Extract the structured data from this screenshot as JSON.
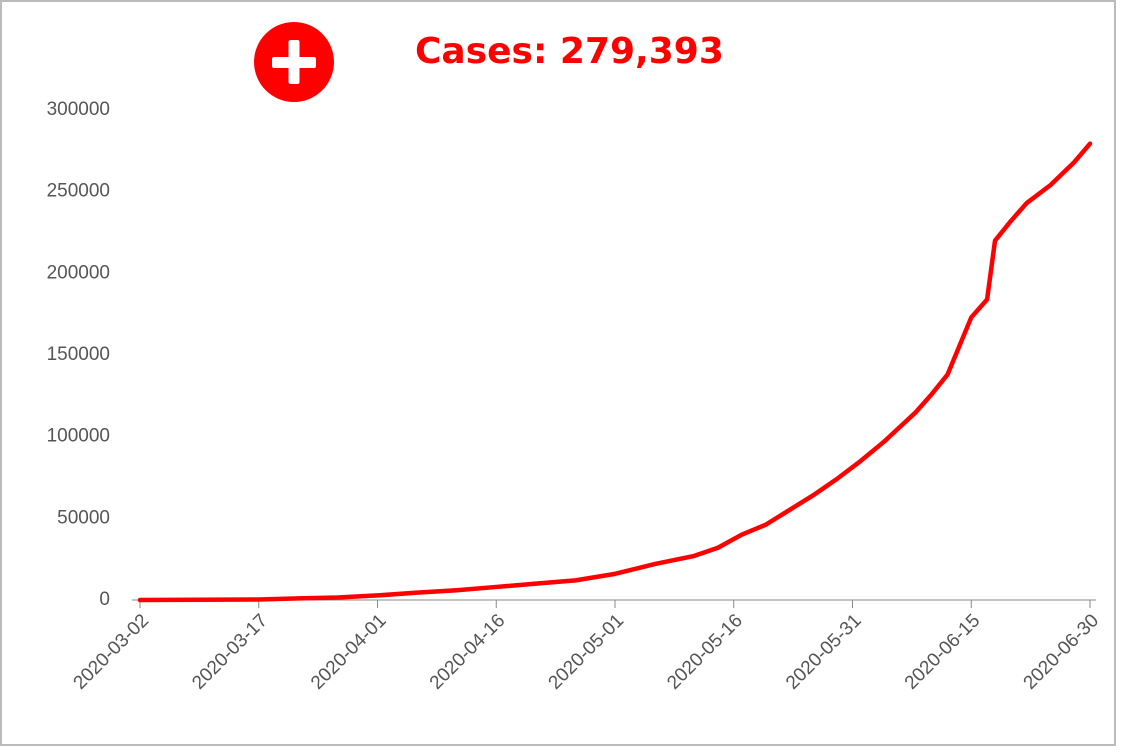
{
  "chart_data": {
    "type": "line",
    "title": "Cases: 279,393",
    "x": [
      "2020-03-02",
      "2020-03-17",
      "2020-03-22",
      "2020-03-27",
      "2020-04-01",
      "2020-04-06",
      "2020-04-11",
      "2020-04-16",
      "2020-04-21",
      "2020-04-26",
      "2020-05-01",
      "2020-05-06",
      "2020-05-11",
      "2020-05-14",
      "2020-05-17",
      "2020-05-20",
      "2020-05-23",
      "2020-05-26",
      "2020-05-29",
      "2020-06-01",
      "2020-06-04",
      "2020-06-06",
      "2020-06-08",
      "2020-06-10",
      "2020-06-12",
      "2020-06-15",
      "2020-06-17",
      "2020-06-18",
      "2020-06-20",
      "2020-06-22",
      "2020-06-25",
      "2020-06-28",
      "2020-06-30"
    ],
    "series": [
      {
        "name": "Cases",
        "color": "#ff0000",
        "values": [
          0,
          300,
          1000,
          1500,
          2800,
          4500,
          6000,
          8000,
          10000,
          12000,
          16000,
          22000,
          27000,
          32000,
          40000,
          46000,
          55000,
          64000,
          74000,
          85000,
          97000,
          106000,
          115000,
          126000,
          138000,
          173000,
          184000,
          220000,
          232000,
          243000,
          254000,
          268000,
          279393
        ]
      }
    ],
    "xlim": [
      "2020-03-02",
      "2020-06-30"
    ],
    "xticks": [
      "2020-03-02",
      "2020-03-17",
      "2020-04-01",
      "2020-04-16",
      "2020-05-01",
      "2020-05-16",
      "2020-05-31",
      "2020-06-15",
      "2020-06-30"
    ],
    "ylim": [
      0,
      300000
    ],
    "yticks": [
      0,
      50000,
      100000,
      150000,
      200000,
      250000,
      300000
    ]
  }
}
